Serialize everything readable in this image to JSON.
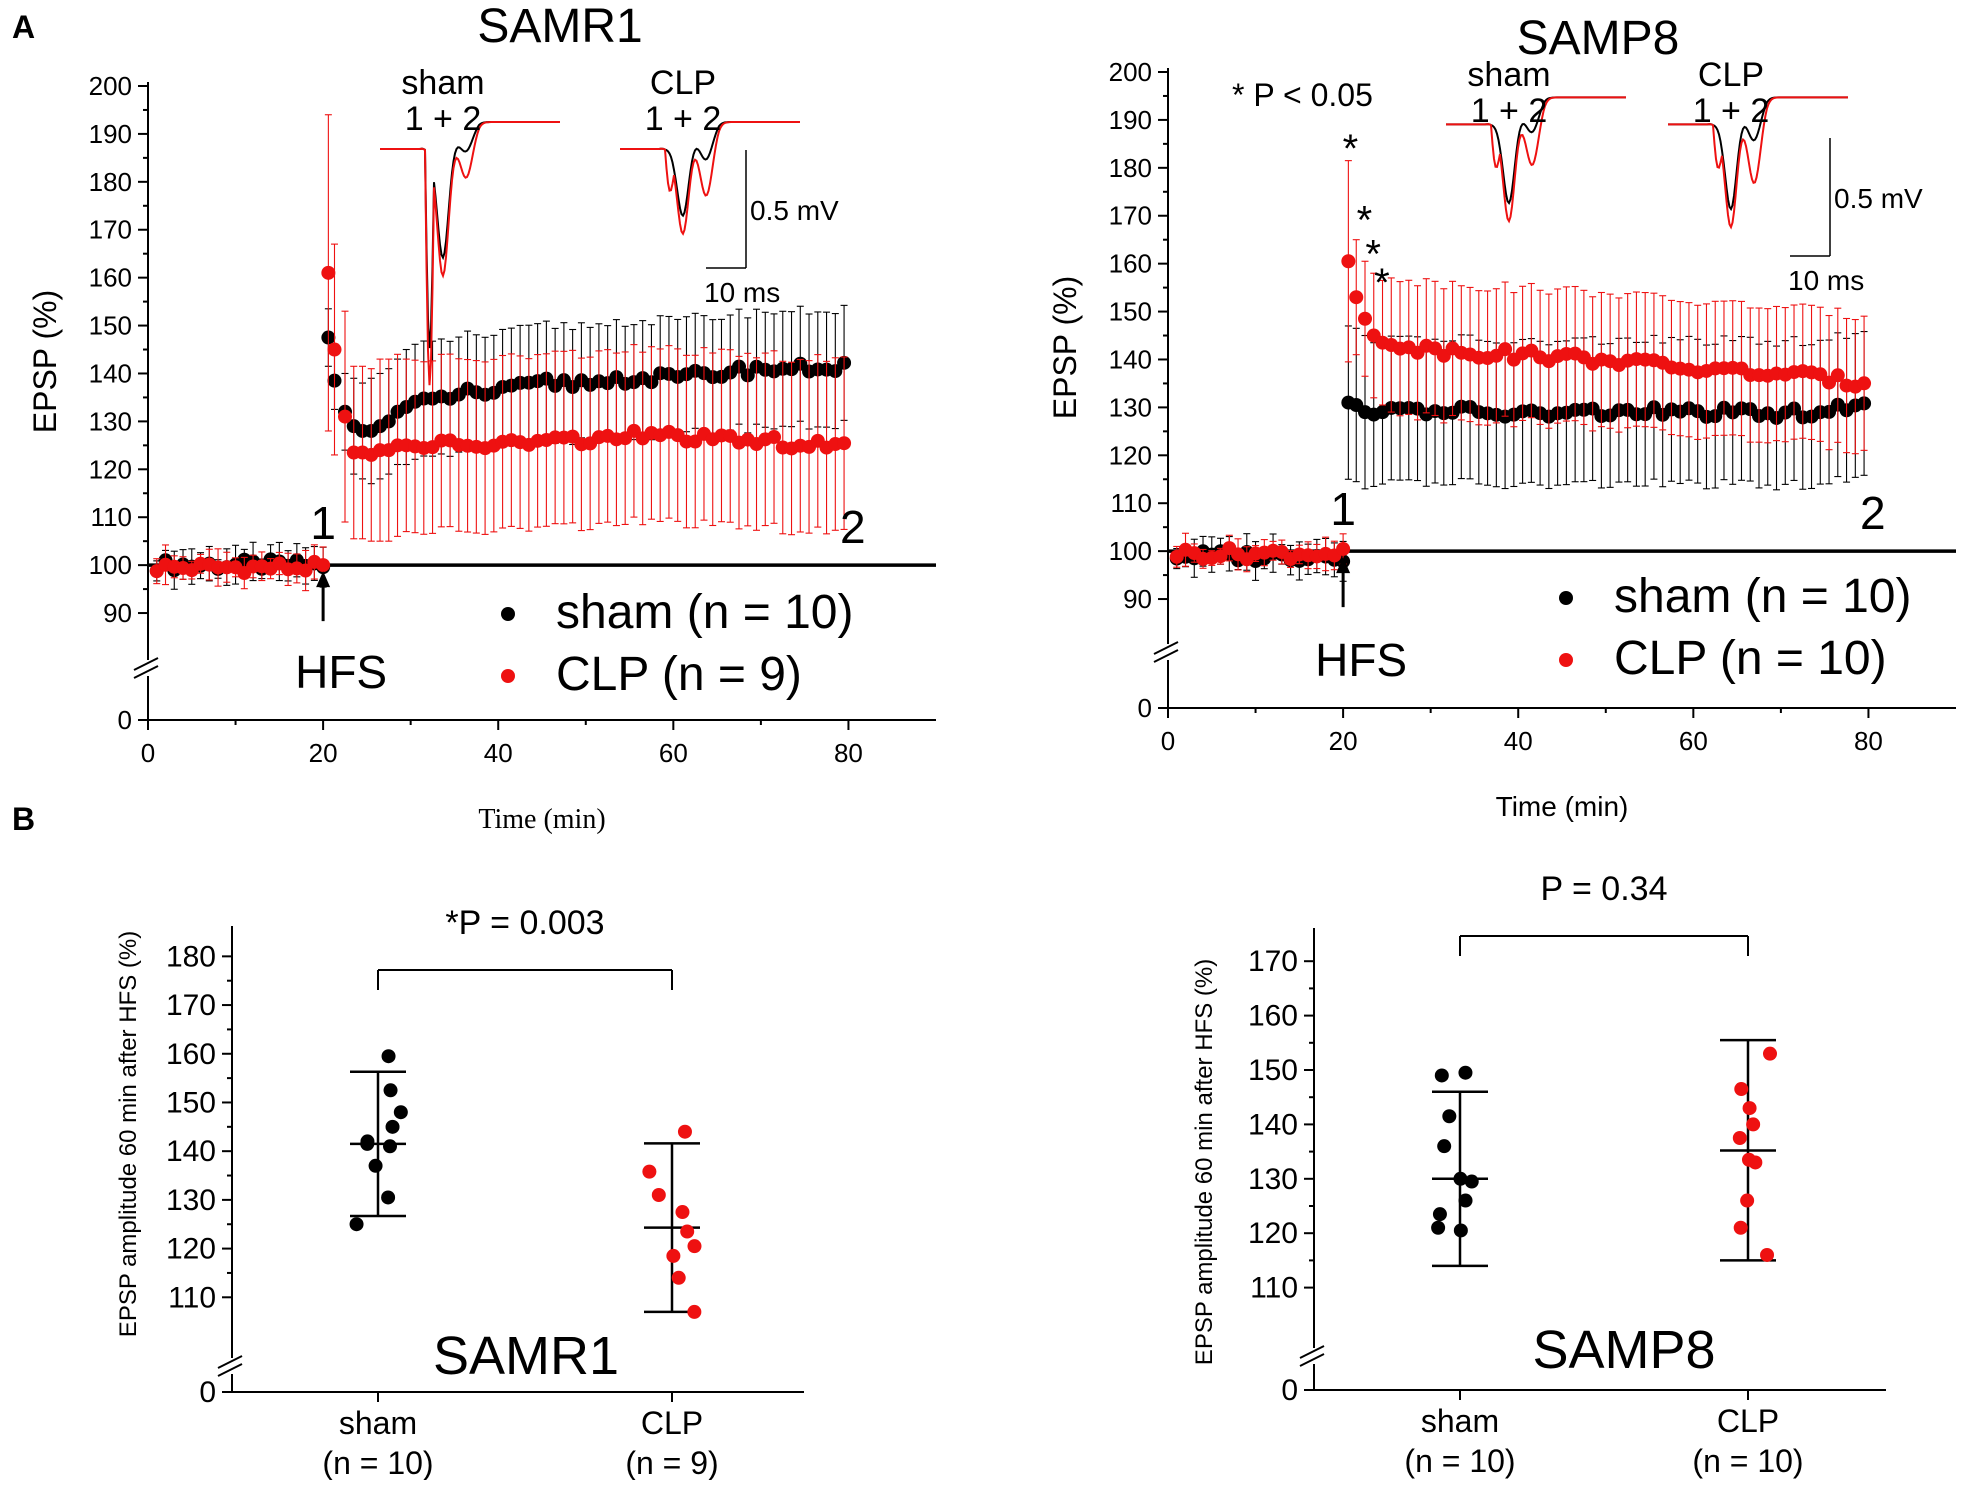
{
  "figure": {
    "panel_labels": [
      "A",
      "B"
    ],
    "colors": {
      "sham": "#000000",
      "clp": "#ee1111",
      "axis": "#000000"
    }
  },
  "chart_data": [
    {
      "id": "A1",
      "type": "scatter",
      "title": "SAMR1",
      "xlabel": "Time (min)",
      "ylabel": "EPSP (%)",
      "xlim": [
        0,
        90
      ],
      "ylim": [
        85,
        200
      ],
      "x_ticks": [
        0,
        20,
        40,
        60,
        80
      ],
      "y_ticks": [
        90,
        100,
        110,
        120,
        130,
        140,
        150,
        160,
        170,
        180,
        190,
        200
      ],
      "y_break_zero": "0",
      "baseline": 100,
      "hfs_time": 20,
      "hfs_label": "HFS",
      "marker_1": "1",
      "marker_2": "2",
      "significance": "",
      "stars": [],
      "legend": [
        {
          "series": "sham",
          "label": "sham (n = 10)",
          "color": "#000000"
        },
        {
          "series": "clp",
          "label": "CLP   (n = 9)",
          "color": "#ee1111"
        }
      ],
      "inset": {
        "sham_label": "sham",
        "sham_sub": "1 + 2",
        "clp_label": "CLP",
        "clp_sub": "1 + 2",
        "scale_v": "0.5 mV",
        "scale_t": "10 ms",
        "traces": [
          {
            "group": "sham",
            "drug": 1,
            "main": 0.95,
            "late": 0.4,
            "tail": 0.05
          },
          {
            "group": "clp",
            "drug": 0,
            "main": 0.6,
            "late": 0.55,
            "tail": 0.05
          }
        ]
      },
      "series": [
        {
          "name": "sham",
          "color": "#000000",
          "baseline": {
            "x_start": 1,
            "x_end": 20,
            "value": 100,
            "sd": 3,
            "n": 20
          },
          "points": [
            [
              20.6,
              147.5,
              6
            ],
            [
              21.3,
              138.5,
              6
            ],
            [
              22.5,
              132,
              8
            ],
            [
              23.5,
              129,
              10
            ],
            [
              24.5,
              128,
              10
            ],
            [
              25.5,
              128,
              11
            ],
            [
              26.5,
              129,
              11
            ],
            [
              27.5,
              130,
              11
            ],
            [
              28.5,
              132,
              11
            ],
            [
              29.5,
              133,
              12
            ]
          ],
          "trend": [
            [
              30,
              133
            ],
            [
              36,
              136
            ],
            [
              40,
              136
            ],
            [
              45,
              138
            ],
            [
              50,
              138
            ],
            [
              55,
              139
            ],
            [
              60,
              139
            ],
            [
              65,
              140
            ],
            [
              70,
              141
            ],
            [
              75,
              141
            ],
            [
              80,
              141.5
            ]
          ],
          "trend_sd": 12
        },
        {
          "name": "clp",
          "color": "#ee1111",
          "baseline": {
            "x_start": 1,
            "x_end": 20,
            "value": 99.5,
            "sd": 3,
            "n": 20
          },
          "points": [
            [
              20.6,
              161,
              33
            ],
            [
              21.3,
              145,
              22
            ],
            [
              22.5,
              131,
              22
            ],
            [
              23.5,
              123.5,
              18
            ],
            [
              24.5,
              123.5,
              18
            ],
            [
              25.5,
              123,
              18
            ],
            [
              26.5,
              124,
              19
            ],
            [
              27.5,
              124,
              19
            ],
            [
              28.5,
              125,
              19
            ],
            [
              29.5,
              125,
              18
            ]
          ],
          "trend": [
            [
              30,
              125
            ],
            [
              40,
              125
            ],
            [
              45,
              126
            ],
            [
              50,
              126
            ],
            [
              55,
              127
            ],
            [
              60,
              127
            ],
            [
              65,
              126
            ],
            [
              70,
              126
            ],
            [
              75,
              125
            ],
            [
              80,
              124.5
            ]
          ],
          "trend_sd": 18
        }
      ]
    },
    {
      "id": "A2",
      "type": "scatter",
      "title": "SAMP8",
      "xlabel": "Time (min)",
      "ylabel": "EPSP (%)",
      "xlim": [
        0,
        90
      ],
      "ylim": [
        85,
        200
      ],
      "x_ticks": [
        0,
        20,
        40,
        60,
        80
      ],
      "y_ticks": [
        90,
        100,
        110,
        120,
        130,
        140,
        150,
        160,
        170,
        180,
        190,
        200
      ],
      "y_break_zero": "0",
      "baseline": 100,
      "hfs_time": 20,
      "hfs_label": "HFS",
      "marker_1": "1",
      "marker_2": "2",
      "significance": "* P < 0.05",
      "stars": [
        {
          "x": 20.6,
          "y": 185,
          "label": "*"
        },
        {
          "x": 22.2,
          "y": 170,
          "label": "*"
        },
        {
          "x": 23.2,
          "y": 163,
          "label": "*"
        },
        {
          "x": 24.2,
          "y": 157,
          "label": "*"
        }
      ],
      "legend": [
        {
          "series": "sham",
          "label": "sham (n = 10)",
          "color": "#000000"
        },
        {
          "series": "clp",
          "label": "CLP   (n = 10)",
          "color": "#ee1111"
        }
      ],
      "inset": {
        "sham_label": "sham",
        "sham_sub": "1 + 2",
        "clp_label": "CLP",
        "clp_sub": "1 + 2",
        "scale_v": "0.5 mV",
        "scale_t": "10 ms",
        "traces": [
          {
            "group": "sham",
            "drug": 0,
            "main": 0.7,
            "late": 0.5,
            "tail": 0.02
          },
          {
            "group": "clp",
            "drug": 0,
            "main": 0.75,
            "late": 0.65,
            "tail": 0.02
          }
        ]
      },
      "series": [
        {
          "name": "sham",
          "color": "#000000",
          "baseline": {
            "x_start": 1,
            "x_end": 20,
            "value": 99,
            "sd": 3,
            "n": 20
          },
          "points": [
            [
              20.6,
              131,
              16
            ],
            [
              21.5,
              130.5,
              16
            ],
            [
              22.5,
              129,
              16
            ],
            [
              23.5,
              128.5,
              15
            ],
            [
              24.5,
              129,
              15
            ]
          ],
          "trend": [
            [
              25,
              129
            ],
            [
              30,
              129.5
            ],
            [
              40,
              128.5
            ],
            [
              50,
              129
            ],
            [
              60,
              129
            ],
            [
              70,
              128.5
            ],
            [
              80,
              130
            ]
          ],
          "trend_sd": 15
        },
        {
          "name": "clp",
          "color": "#ee1111",
          "baseline": {
            "x_start": 1,
            "x_end": 20,
            "value": 99.5,
            "sd": 2.5,
            "n": 20
          },
          "points": [
            [
              20.6,
              160.5,
              21
            ],
            [
              21.5,
              153,
              12
            ],
            [
              22.5,
              148.5,
              12
            ],
            [
              23.5,
              145,
              13
            ],
            [
              24.5,
              143.5,
              13
            ]
          ],
          "trend": [
            [
              25,
              143.5
            ],
            [
              30,
              142
            ],
            [
              40,
              141
            ],
            [
              50,
              140
            ],
            [
              60,
              138
            ],
            [
              70,
              137
            ],
            [
              75,
              136
            ],
            [
              80,
              135
            ]
          ],
          "trend_sd": 14
        }
      ]
    },
    {
      "id": "B1",
      "type": "scatter",
      "title": "SAMR1",
      "ylabel": "EPSP amplitude 60 min after HFS (%)",
      "ylim": [
        100,
        185
      ],
      "y_ticks": [
        110,
        120,
        130,
        140,
        150,
        160,
        170,
        180
      ],
      "y_break_zero": "0",
      "p_value": "*P = 0.003",
      "groups": [
        {
          "name": "sham",
          "label": "sham",
          "n_label": "(n = 10)",
          "color": "#000000",
          "mean": 141.5,
          "sd_low": 126.7,
          "sd_high": 156.3,
          "values": [
            159.5,
            152.5,
            148,
            145,
            142,
            141.5,
            141,
            137,
            130.5,
            125
          ]
        },
        {
          "name": "clp",
          "label": "CLP",
          "n_label": "(n = 9)",
          "color": "#ee1111",
          "mean": 124.3,
          "sd_low": 107,
          "sd_high": 141.6,
          "values": [
            144,
            135.8,
            131,
            127.5,
            123.5,
            120.5,
            118.5,
            114,
            107
          ]
        }
      ]
    },
    {
      "id": "B2",
      "type": "scatter",
      "title": "SAMP8",
      "ylabel": "EPSP amplitude 60 min after HFS (%)",
      "ylim": [
        100,
        175
      ],
      "y_ticks": [
        110,
        120,
        130,
        140,
        150,
        160,
        170
      ],
      "y_break_zero": "0",
      "p_value": "P = 0.34",
      "groups": [
        {
          "name": "sham",
          "label": "sham",
          "n_label": "(n = 10)",
          "color": "#000000",
          "mean": 130,
          "sd_low": 114,
          "sd_high": 146,
          "values": [
            149.5,
            149,
            141.5,
            136,
            130,
            129.5,
            126,
            123.5,
            121,
            120.5
          ]
        },
        {
          "name": "clp",
          "label": "CLP",
          "n_label": "(n = 10)",
          "color": "#ee1111",
          "mean": 135.2,
          "sd_low": 115,
          "sd_high": 155.5,
          "values": [
            153,
            146.5,
            143,
            140,
            137.5,
            133.5,
            133,
            126,
            121,
            116
          ]
        }
      ]
    }
  ]
}
